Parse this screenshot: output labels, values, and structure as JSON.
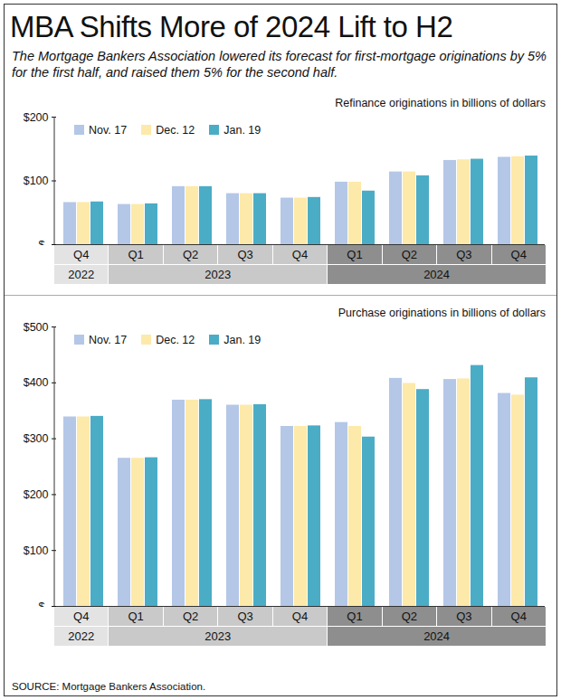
{
  "title": "MBA Shifts More of 2024 Lift to H2",
  "subtitle": "The Mortgage Bankers Association lowered its forecast for first-mortgage originations by 5% for the first half, and raised them 5% for the second half.",
  "source": "SOURCE: Mortgage Bankers Association.",
  "chart_data": [
    {
      "type": "bar",
      "title": "Refinance originations in billions of dollars",
      "categories": [
        "Q4",
        "Q1",
        "Q2",
        "Q3",
        "Q4",
        "Q1",
        "Q2",
        "Q3",
        "Q4"
      ],
      "years": [
        "2022",
        "2023",
        "2023",
        "2023",
        "2023",
        "2024",
        "2024",
        "2024",
        "2024"
      ],
      "series": [
        {
          "name": "Nov. 17",
          "color": "#b4c7e7",
          "values": [
            66,
            63,
            91,
            80,
            73,
            98,
            114,
            132,
            137
          ]
        },
        {
          "name": "Dec. 12",
          "color": "#fde9a9",
          "values": [
            66,
            63,
            91,
            80,
            73,
            98,
            114,
            133,
            138
          ]
        },
        {
          "name": "Jan. 19",
          "color": "#4bacc6",
          "values": [
            67,
            64,
            91,
            80,
            74,
            84,
            108,
            134,
            139
          ]
        }
      ],
      "ylim": [
        0,
        200
      ],
      "yticks": [
        {
          "value": 0,
          "label": "$-"
        },
        {
          "value": 100,
          "label": "$100"
        },
        {
          "value": 200,
          "label": "$200"
        }
      ],
      "legend": "top-left"
    },
    {
      "type": "bar",
      "title": "Purchase originations in billions of dollars",
      "categories": [
        "Q4",
        "Q1",
        "Q2",
        "Q3",
        "Q4",
        "Q1",
        "Q2",
        "Q3",
        "Q4"
      ],
      "years": [
        "2022",
        "2023",
        "2023",
        "2023",
        "2023",
        "2024",
        "2024",
        "2024",
        "2024"
      ],
      "series": [
        {
          "name": "Nov. 17",
          "color": "#b4c7e7",
          "values": [
            339,
            265,
            369,
            360,
            322,
            329,
            408,
            406,
            381
          ]
        },
        {
          "name": "Dec. 12",
          "color": "#fde9a9",
          "values": [
            339,
            265,
            369,
            360,
            322,
            322,
            399,
            407,
            378
          ]
        },
        {
          "name": "Jan. 19",
          "color": "#4bacc6",
          "values": [
            340,
            266,
            370,
            361,
            323,
            303,
            388,
            431,
            409
          ]
        }
      ],
      "ylim": [
        0,
        500
      ],
      "yticks": [
        {
          "value": 0,
          "label": "$-"
        },
        {
          "value": 100,
          "label": "$100"
        },
        {
          "value": 200,
          "label": "$200"
        },
        {
          "value": 300,
          "label": "$300"
        },
        {
          "value": 400,
          "label": "$400"
        },
        {
          "value": 500,
          "label": "$500"
        }
      ],
      "legend": "top-left"
    }
  ]
}
